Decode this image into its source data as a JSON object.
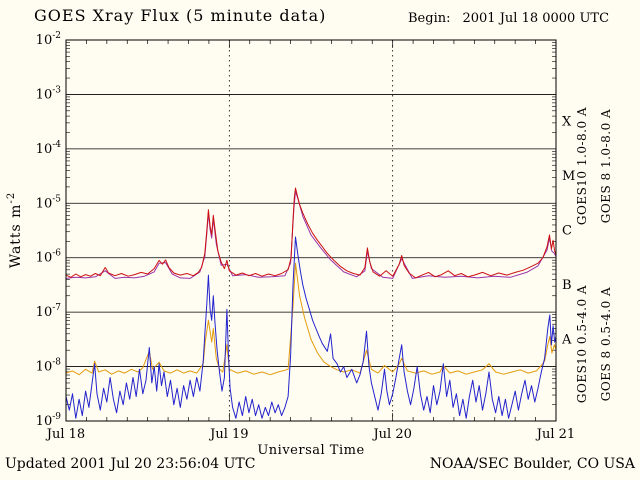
{
  "title": "GOES Xray Flux (5 minute data)",
  "begin": {
    "label": "Begin:",
    "value": "2001 Jul 18 0000 UTC"
  },
  "footer": {
    "updated": "Updated 2001 Jul 20 23:56:04 UTC",
    "credit": "NOAA/SEC Boulder, CO USA"
  },
  "chart_data": {
    "type": "line",
    "title": "GOES Xray Flux (5 minute data)",
    "xlabel": "Universal Time",
    "ylabel": {
      "text": "Watts m",
      "sup": "-2"
    },
    "x_range_days": [
      0,
      3
    ],
    "y_log_range": [
      -9,
      -2
    ],
    "y_scale": "log10",
    "grid": "solid horizontal line at each decade, dotted vertical lines at day boundaries",
    "legend_position": "right-margin-rotated",
    "y_ticks": [
      {
        "base": "10",
        "exp": "-2"
      },
      {
        "base": "10",
        "exp": "-3"
      },
      {
        "base": "10",
        "exp": "-4"
      },
      {
        "base": "10",
        "exp": "-5"
      },
      {
        "base": "10",
        "exp": "-6"
      },
      {
        "base": "10",
        "exp": "-7"
      },
      {
        "base": "10",
        "exp": "-8"
      },
      {
        "base": "10",
        "exp": "-9"
      }
    ],
    "grid_decades": [
      -3,
      -4,
      -5,
      -6,
      -7,
      -8
    ],
    "day_boundaries": [
      1,
      2
    ],
    "x_ticks": [
      {
        "label": "Jul 18",
        "t": 0
      },
      {
        "label": "Jul 19",
        "t": 1
      },
      {
        "label": "Jul 20",
        "t": 2
      },
      {
        "label": "Jul 21",
        "t": 3
      }
    ],
    "flare_classes": [
      {
        "label": "X",
        "log_center": -3.5
      },
      {
        "label": "M",
        "log_center": -4.5
      },
      {
        "label": "C",
        "log_center": -5.5
      },
      {
        "label": "B",
        "log_center": -6.5
      },
      {
        "label": "A",
        "log_center": -7.5
      }
    ],
    "points_format": "[t_days_since_Jul18_0000UTC, log10_flux_W_m2, ...]",
    "series": [
      {
        "id": "goes10-long",
        "name": "GOES10 1.0-8.0 A",
        "satellite": "GOES10",
        "band": "1.0-8.0 A",
        "color": "#9933aa",
        "points": [
          0.0,
          -6.38,
          0.06,
          -6.36,
          0.12,
          -6.37,
          0.18,
          -6.35,
          0.24,
          -6.24,
          0.3,
          -6.38,
          0.36,
          -6.36,
          0.42,
          -6.37,
          0.48,
          -6.34,
          0.54,
          -6.26,
          0.57,
          -6.1,
          0.61,
          -6.09,
          0.65,
          -6.3,
          0.7,
          -6.37,
          0.76,
          -6.38,
          0.82,
          -6.26,
          0.85,
          -5.98,
          0.862,
          -5.56,
          0.872,
          -5.18,
          0.882,
          -5.48,
          0.892,
          -5.64,
          0.902,
          -5.28,
          0.92,
          -5.75,
          0.95,
          -6.14,
          0.985,
          -6.12,
          1.02,
          -6.33,
          1.1,
          -6.31,
          1.18,
          -6.36,
          1.26,
          -6.35,
          1.34,
          -6.33,
          1.375,
          -6.1,
          1.395,
          -5.1,
          1.405,
          -4.78,
          1.42,
          -4.92,
          1.45,
          -5.24,
          1.5,
          -5.58,
          1.56,
          -5.82,
          1.62,
          -6.04,
          1.7,
          -6.26,
          1.78,
          -6.35,
          1.83,
          -6.24,
          1.845,
          -5.88,
          1.87,
          -6.2,
          1.94,
          -6.36,
          2.0,
          -6.38,
          2.055,
          -6.02,
          2.12,
          -6.38,
          2.22,
          -6.33,
          2.32,
          -6.36,
          2.42,
          -6.34,
          2.52,
          -6.37,
          2.62,
          -6.34,
          2.72,
          -6.36,
          2.82,
          -6.27,
          2.89,
          -6.15,
          2.945,
          -5.86,
          2.96,
          -5.64,
          2.975,
          -5.88,
          2.99,
          -5.92,
          3.0,
          -5.98
        ]
      },
      {
        "id": "goes8-long",
        "name": "GOES 8 1.0-8.0 A",
        "satellite": "GOES 8",
        "band": "1.0-8.0 A",
        "color": "#cc1111",
        "points": [
          0.0,
          -6.32,
          0.03,
          -6.36,
          0.06,
          -6.3,
          0.09,
          -6.35,
          0.12,
          -6.31,
          0.15,
          -6.34,
          0.18,
          -6.29,
          0.21,
          -6.33,
          0.24,
          -6.18,
          0.26,
          -6.28,
          0.3,
          -6.33,
          0.34,
          -6.29,
          0.38,
          -6.34,
          0.42,
          -6.31,
          0.46,
          -6.27,
          0.5,
          -6.3,
          0.54,
          -6.2,
          0.57,
          -6.05,
          0.59,
          -6.12,
          0.61,
          -6.04,
          0.63,
          -6.18,
          0.66,
          -6.28,
          0.7,
          -6.32,
          0.74,
          -6.29,
          0.78,
          -6.33,
          0.81,
          -6.27,
          0.83,
          -6.18,
          0.85,
          -5.92,
          0.862,
          -5.5,
          0.872,
          -5.12,
          0.882,
          -5.42,
          0.892,
          -5.58,
          0.902,
          -5.22,
          0.914,
          -5.52,
          0.93,
          -5.88,
          0.95,
          -6.08,
          0.97,
          -6.2,
          0.985,
          -6.05,
          1.0,
          -6.24,
          1.04,
          -6.32,
          1.08,
          -6.28,
          1.12,
          -6.33,
          1.16,
          -6.29,
          1.2,
          -6.34,
          1.24,
          -6.3,
          1.28,
          -6.33,
          1.32,
          -6.29,
          1.36,
          -6.22,
          1.378,
          -6.0,
          1.39,
          -5.3,
          1.398,
          -4.9,
          1.405,
          -4.72,
          1.415,
          -4.84,
          1.43,
          -5.02,
          1.45,
          -5.18,
          1.48,
          -5.38,
          1.51,
          -5.55,
          1.54,
          -5.68,
          1.57,
          -5.8,
          1.6,
          -5.92,
          1.64,
          -6.05,
          1.68,
          -6.16,
          1.72,
          -6.24,
          1.76,
          -6.29,
          1.8,
          -6.32,
          1.83,
          -6.18,
          1.845,
          -5.82,
          1.86,
          -6.08,
          1.88,
          -6.26,
          1.92,
          -6.34,
          1.96,
          -6.24,
          2.0,
          -6.34,
          2.04,
          -6.12,
          2.055,
          -5.96,
          2.07,
          -6.14,
          2.1,
          -6.28,
          2.14,
          -6.37,
          2.18,
          -6.32,
          2.22,
          -6.27,
          2.26,
          -6.35,
          2.3,
          -6.31,
          2.34,
          -6.24,
          2.38,
          -6.33,
          2.42,
          -6.29,
          2.46,
          -6.35,
          2.5,
          -6.32,
          2.55,
          -6.27,
          2.6,
          -6.33,
          2.65,
          -6.28,
          2.7,
          -6.32,
          2.75,
          -6.27,
          2.8,
          -6.23,
          2.85,
          -6.16,
          2.89,
          -6.1,
          2.92,
          -6.0,
          2.945,
          -5.8,
          2.96,
          -5.58,
          2.972,
          -5.84,
          2.982,
          -5.68,
          2.992,
          -5.88,
          3.0,
          -5.94
        ]
      },
      {
        "id": "goes10-short",
        "name": "GOES10 0.5-4.0 A",
        "satellite": "GOES10",
        "band": "0.5-4.0 A",
        "color": "#e39b0e",
        "points": [
          0.0,
          -8.12,
          0.04,
          -8.08,
          0.08,
          -8.15,
          0.12,
          -8.05,
          0.16,
          -8.12,
          0.175,
          -7.9,
          0.2,
          -8.1,
          0.24,
          -8.06,
          0.28,
          -8.14,
          0.32,
          -8.08,
          0.36,
          -8.12,
          0.4,
          -8.05,
          0.44,
          -8.1,
          0.47,
          -8.02,
          0.51,
          -7.72,
          0.53,
          -8.05,
          0.57,
          -7.92,
          0.6,
          -8.08,
          0.64,
          -8.12,
          0.68,
          -8.06,
          0.72,
          -8.12,
          0.76,
          -8.08,
          0.8,
          -8.12,
          0.84,
          -7.95,
          0.852,
          -7.55,
          0.872,
          -7.15,
          0.892,
          -7.55,
          0.902,
          -7.3,
          0.92,
          -7.85,
          0.94,
          -8.05,
          0.96,
          -8.1,
          0.985,
          -7.6,
          1.0,
          -8.05,
          1.05,
          -8.12,
          1.1,
          -8.08,
          1.15,
          -8.14,
          1.2,
          -8.1,
          1.25,
          -8.15,
          1.3,
          -8.1,
          1.36,
          -8.05,
          1.39,
          -6.9,
          1.405,
          -6.1,
          1.43,
          -6.7,
          1.46,
          -7.1,
          1.5,
          -7.5,
          1.54,
          -7.75,
          1.58,
          -7.92,
          1.62,
          -8.0,
          1.66,
          -8.06,
          1.7,
          -8.1,
          1.75,
          -8.06,
          1.8,
          -8.12,
          1.84,
          -7.7,
          1.87,
          -8.05,
          1.91,
          -8.12,
          1.95,
          -7.98,
          2.0,
          -8.1,
          2.04,
          -7.95,
          2.055,
          -7.85,
          2.09,
          -8.08,
          2.14,
          -8.12,
          2.19,
          -8.08,
          2.24,
          -8.14,
          2.29,
          -8.1,
          2.31,
          -7.98,
          2.35,
          -8.12,
          2.4,
          -8.08,
          2.45,
          -8.14,
          2.5,
          -8.1,
          2.55,
          -8.06,
          2.59,
          -7.95,
          2.63,
          -8.1,
          2.68,
          -8.14,
          2.73,
          -8.1,
          2.78,
          -8.06,
          2.83,
          -8.12,
          2.88,
          -8.08,
          2.91,
          -7.98,
          2.93,
          -7.9,
          2.95,
          -7.6,
          2.962,
          -7.45,
          2.975,
          -7.75,
          2.99,
          -7.6,
          3.0,
          -7.68
        ]
      },
      {
        "id": "goes8-short",
        "name": "GOES 8 0.5-4.0 A",
        "satellite": "GOES 8",
        "band": "0.5-4.0 A",
        "color": "#2323cd",
        "points": [
          0.0,
          -8.55,
          0.02,
          -8.8,
          0.04,
          -8.5,
          0.06,
          -8.95,
          0.08,
          -8.6,
          0.1,
          -8.9,
          0.12,
          -8.45,
          0.14,
          -8.75,
          0.16,
          -8.3,
          0.175,
          -7.95,
          0.19,
          -8.5,
          0.21,
          -8.8,
          0.23,
          -8.4,
          0.25,
          -8.65,
          0.27,
          -8.2,
          0.29,
          -8.6,
          0.31,
          -8.85,
          0.33,
          -8.45,
          0.35,
          -8.7,
          0.37,
          -8.3,
          0.39,
          -8.6,
          0.41,
          -8.2,
          0.43,
          -8.55,
          0.45,
          -8.05,
          0.47,
          -8.5,
          0.49,
          -8.25,
          0.51,
          -7.65,
          0.525,
          -8.3,
          0.54,
          -8.0,
          0.555,
          -8.45,
          0.57,
          -7.95,
          0.585,
          -8.35,
          0.6,
          -8.1,
          0.62,
          -8.55,
          0.64,
          -8.25,
          0.66,
          -8.7,
          0.68,
          -8.4,
          0.7,
          -8.75,
          0.72,
          -8.35,
          0.74,
          -8.6,
          0.76,
          -8.25,
          0.78,
          -8.55,
          0.8,
          -8.2,
          0.82,
          -8.45,
          0.84,
          -7.9,
          0.852,
          -7.3,
          0.862,
          -6.85,
          0.872,
          -6.32,
          0.882,
          -6.95,
          0.892,
          -7.15,
          0.902,
          -6.7,
          0.912,
          -7.2,
          0.925,
          -7.7,
          0.94,
          -8.1,
          0.955,
          -8.45,
          0.97,
          -8.2,
          0.985,
          -6.95,
          0.995,
          -7.8,
          1.005,
          -8.4,
          1.02,
          -8.75,
          1.04,
          -8.95,
          1.06,
          -8.65,
          1.08,
          -8.9,
          1.1,
          -8.55,
          1.12,
          -8.85,
          1.14,
          -8.6,
          1.16,
          -8.9,
          1.18,
          -8.7,
          1.2,
          -8.95,
          1.22,
          -8.75,
          1.24,
          -8.9,
          1.26,
          -8.65,
          1.28,
          -8.85,
          1.3,
          -8.7,
          1.32,
          -8.9,
          1.34,
          -8.75,
          1.36,
          -8.55,
          1.375,
          -7.8,
          1.39,
          -6.5,
          1.405,
          -5.62,
          1.42,
          -5.95,
          1.435,
          -6.25,
          1.45,
          -6.5,
          1.47,
          -6.75,
          1.49,
          -6.95,
          1.51,
          -7.15,
          1.53,
          -7.3,
          1.55,
          -7.45,
          1.57,
          -7.58,
          1.6,
          -7.72,
          1.62,
          -7.4,
          1.635,
          -7.85,
          1.66,
          -7.95,
          1.68,
          -8.1,
          1.7,
          -8.0,
          1.72,
          -8.2,
          1.75,
          -8.05,
          1.78,
          -8.3,
          1.8,
          -8.15,
          1.82,
          -7.9,
          1.84,
          -7.35,
          1.855,
          -8.0,
          1.87,
          -8.3,
          1.89,
          -8.55,
          1.91,
          -8.8,
          1.93,
          -8.5,
          1.95,
          -8.05,
          1.965,
          -8.45,
          1.98,
          -8.7,
          2.0,
          -8.5,
          2.02,
          -8.2,
          2.04,
          -7.85,
          2.055,
          -7.6,
          2.07,
          -8.1,
          2.09,
          -8.45,
          2.11,
          -8.7,
          2.13,
          -8.4,
          2.15,
          -8.0,
          2.17,
          -8.5,
          2.19,
          -8.8,
          2.21,
          -8.55,
          2.23,
          -8.85,
          2.25,
          -8.35,
          2.27,
          -8.7,
          2.29,
          -8.45,
          2.31,
          -7.95,
          2.33,
          -8.55,
          2.35,
          -8.25,
          2.37,
          -8.75,
          2.39,
          -8.5,
          2.41,
          -8.9,
          2.43,
          -8.6,
          2.45,
          -8.95,
          2.47,
          -8.55,
          2.49,
          -8.25,
          2.51,
          -8.65,
          2.53,
          -8.35,
          2.55,
          -8.8,
          2.57,
          -8.5,
          2.59,
          -8.1,
          2.61,
          -8.6,
          2.63,
          -8.85,
          2.65,
          -8.55,
          2.67,
          -8.9,
          2.69,
          -8.6,
          2.71,
          -8.95,
          2.73,
          -8.7,
          2.75,
          -8.45,
          2.77,
          -8.8,
          2.79,
          -8.5,
          2.81,
          -8.25,
          2.83,
          -8.6,
          2.85,
          -8.35,
          2.87,
          -8.65,
          2.89,
          -8.4,
          2.91,
          -8.1,
          2.93,
          -7.85,
          2.95,
          -7.3,
          2.962,
          -7.05,
          2.972,
          -7.6,
          2.982,
          -7.25,
          2.992,
          -7.55,
          3.0,
          -7.45
        ]
      }
    ]
  }
}
